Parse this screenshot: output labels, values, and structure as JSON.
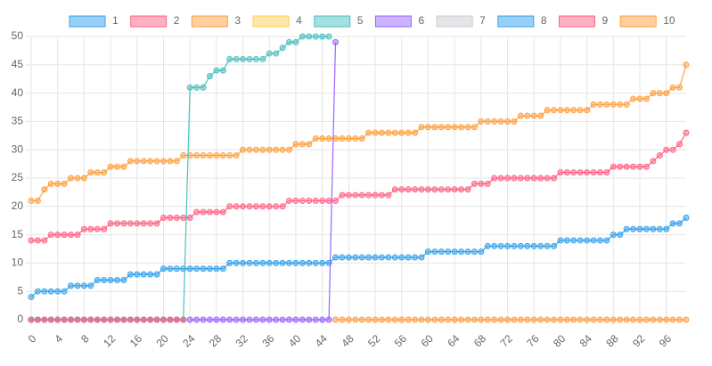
{
  "chart_data": {
    "type": "line",
    "x": [
      0,
      1,
      2,
      3,
      4,
      5,
      6,
      7,
      8,
      9,
      10,
      11,
      12,
      13,
      14,
      15,
      16,
      17,
      18,
      19,
      20,
      21,
      22,
      23,
      24,
      25,
      26,
      27,
      28,
      29,
      30,
      31,
      32,
      33,
      34,
      35,
      36,
      37,
      38,
      39,
      40,
      41,
      42,
      43,
      44,
      45,
      46,
      47,
      48,
      49,
      50,
      51,
      52,
      53,
      54,
      55,
      56,
      57,
      58,
      59,
      60,
      61,
      62,
      63,
      64,
      65,
      66,
      67,
      68,
      69,
      70,
      71,
      72,
      73,
      74,
      75,
      76,
      77,
      78,
      79,
      80,
      81,
      82,
      83,
      84,
      85,
      86,
      87,
      88,
      89,
      90,
      91,
      92,
      93,
      94,
      95,
      96,
      97,
      98,
      99
    ],
    "xlim": [
      0,
      99
    ],
    "xticks": [
      0,
      4,
      8,
      12,
      16,
      20,
      24,
      28,
      32,
      36,
      40,
      44,
      48,
      52,
      56,
      60,
      64,
      68,
      72,
      76,
      80,
      84,
      88,
      92,
      96
    ],
    "ylim": [
      0,
      50
    ],
    "yticks": [
      0,
      5,
      10,
      15,
      20,
      25,
      30,
      35,
      40,
      45,
      50
    ],
    "grid": true,
    "legend": "top",
    "series": [
      {
        "name": "1",
        "color": "#36a2eb",
        "values": [
          4,
          5,
          5,
          5,
          5,
          5,
          6,
          6,
          6,
          6,
          7,
          7,
          7,
          7,
          7,
          8,
          8,
          8,
          8,
          8,
          9,
          9,
          9,
          9,
          9,
          9,
          9,
          9,
          9,
          9,
          10,
          10,
          10,
          10,
          10,
          10,
          10,
          10,
          10,
          10,
          10,
          10,
          10,
          10,
          10,
          10,
          11,
          11,
          11,
          11,
          11,
          11,
          11,
          11,
          11,
          11,
          11,
          11,
          11,
          11,
          12,
          12,
          12,
          12,
          12,
          12,
          12,
          12,
          12,
          13,
          13,
          13,
          13,
          13,
          13,
          13,
          13,
          13,
          13,
          13,
          14,
          14,
          14,
          14,
          14,
          14,
          14,
          14,
          15,
          15,
          16,
          16,
          16,
          16,
          16,
          16,
          16,
          17,
          17,
          18
        ]
      },
      {
        "name": "2",
        "color": "#ff6384",
        "values": [
          14,
          14,
          14,
          15,
          15,
          15,
          15,
          15,
          16,
          16,
          16,
          16,
          17,
          17,
          17,
          17,
          17,
          17,
          17,
          17,
          18,
          18,
          18,
          18,
          18,
          19,
          19,
          19,
          19,
          19,
          20,
          20,
          20,
          20,
          20,
          20,
          20,
          20,
          20,
          21,
          21,
          21,
          21,
          21,
          21,
          21,
          21,
          22,
          22,
          22,
          22,
          22,
          22,
          22,
          22,
          23,
          23,
          23,
          23,
          23,
          23,
          23,
          23,
          23,
          23,
          23,
          23,
          24,
          24,
          24,
          25,
          25,
          25,
          25,
          25,
          25,
          25,
          25,
          25,
          25,
          26,
          26,
          26,
          26,
          26,
          26,
          26,
          26,
          27,
          27,
          27,
          27,
          27,
          27,
          28,
          29,
          30,
          30,
          31,
          33
        ]
      },
      {
        "name": "3",
        "color": "#ff9f40",
        "values": [
          21,
          21,
          23,
          24,
          24,
          24,
          25,
          25,
          25,
          26,
          26,
          26,
          27,
          27,
          27,
          28,
          28,
          28,
          28,
          28,
          28,
          28,
          28,
          29,
          29,
          29,
          29,
          29,
          29,
          29,
          29,
          29,
          30,
          30,
          30,
          30,
          30,
          30,
          30,
          30,
          31,
          31,
          31,
          32,
          32,
          32,
          32,
          32,
          32,
          32,
          32,
          33,
          33,
          33,
          33,
          33,
          33,
          33,
          33,
          34,
          34,
          34,
          34,
          34,
          34,
          34,
          34,
          34,
          35,
          35,
          35,
          35,
          35,
          35,
          36,
          36,
          36,
          36,
          37,
          37,
          37,
          37,
          37,
          37,
          37,
          38,
          38,
          38,
          38,
          38,
          38,
          39,
          39,
          39,
          40,
          40,
          40,
          41,
          41,
          45
        ]
      },
      {
        "name": "4",
        "color": "#ffcd56",
        "values": [
          0,
          0,
          0,
          0,
          0,
          0,
          0,
          0,
          0,
          0,
          0,
          0,
          0,
          0,
          0,
          0,
          0,
          0,
          0,
          0,
          0,
          0,
          0,
          0,
          null,
          null,
          null,
          null,
          null,
          null,
          null,
          null,
          null,
          null,
          null,
          null,
          null,
          null,
          null,
          null,
          null,
          null,
          null,
          null,
          null,
          null,
          null,
          null,
          null,
          null,
          null,
          null,
          null,
          null,
          null,
          null,
          null,
          null,
          null,
          null,
          null,
          null,
          null,
          null,
          null,
          null,
          null,
          null,
          null,
          null,
          null,
          null,
          null,
          null,
          null,
          null,
          null,
          null,
          null,
          null,
          null,
          null,
          null,
          null,
          null,
          null,
          null,
          null,
          null,
          null,
          null,
          null,
          null,
          null,
          null,
          null,
          null,
          null,
          null,
          null
        ]
      },
      {
        "name": "5",
        "color": "#4bc0c0",
        "values": [
          0,
          0,
          0,
          0,
          0,
          0,
          0,
          0,
          0,
          0,
          0,
          0,
          0,
          0,
          0,
          0,
          0,
          0,
          0,
          0,
          0,
          0,
          0,
          0,
          41,
          41,
          41,
          43,
          44,
          44,
          46,
          46,
          46,
          46,
          46,
          46,
          47,
          47,
          48,
          49,
          49,
          50,
          50,
          50,
          50,
          50,
          null,
          null,
          null,
          null,
          null,
          null,
          null,
          null,
          null,
          null,
          null,
          null,
          null,
          null,
          null,
          null,
          null,
          null,
          null,
          null,
          null,
          null,
          null,
          null,
          null,
          null,
          null,
          null,
          null,
          null,
          null,
          null,
          null,
          null,
          null,
          null,
          null,
          null,
          null,
          null,
          null,
          null,
          null,
          null,
          null,
          null,
          null,
          null,
          null,
          null,
          null,
          null,
          null,
          null
        ]
      },
      {
        "name": "6",
        "color": "#9966ff",
        "values": [
          null,
          null,
          null,
          null,
          null,
          null,
          null,
          null,
          null,
          null,
          null,
          null,
          null,
          null,
          null,
          null,
          null,
          null,
          null,
          null,
          null,
          null,
          null,
          null,
          0,
          0,
          0,
          0,
          0,
          0,
          0,
          0,
          0,
          0,
          0,
          0,
          0,
          0,
          0,
          0,
          0,
          0,
          0,
          0,
          0,
          0,
          49,
          null,
          null,
          null,
          null,
          null,
          null,
          null,
          null,
          null,
          null,
          null,
          null,
          null,
          null,
          null,
          null,
          null,
          null,
          null,
          null,
          null,
          null,
          null,
          null,
          null,
          null,
          null,
          null,
          null,
          null,
          null,
          null,
          null,
          null,
          null,
          null,
          null,
          null,
          null,
          null,
          null,
          null,
          null,
          null,
          null,
          null,
          null,
          null,
          null,
          null,
          null,
          null,
          null
        ]
      },
      {
        "name": "7",
        "color": "#c9cbcf",
        "values": [
          0,
          0,
          0,
          0,
          0,
          0,
          0,
          0,
          0,
          0,
          0,
          0,
          0,
          0,
          0,
          0,
          0,
          0,
          0,
          0,
          0,
          0,
          0,
          0,
          null,
          null,
          null,
          null,
          null,
          null,
          null,
          null,
          null,
          null,
          null,
          null,
          null,
          null,
          null,
          null,
          null,
          null,
          null,
          null,
          null,
          null,
          null,
          null,
          null,
          null,
          null,
          null,
          null,
          null,
          null,
          null,
          null,
          null,
          null,
          null,
          null,
          null,
          null,
          null,
          null,
          null,
          null,
          null,
          null,
          null,
          null,
          null,
          null,
          null,
          null,
          null,
          null,
          null,
          null,
          null,
          null,
          null,
          null,
          null,
          null,
          null,
          null,
          null,
          null,
          null,
          null,
          null,
          null,
          null,
          null,
          null,
          null,
          null,
          null,
          null
        ]
      },
      {
        "name": "8",
        "color": "#36a2eb",
        "values": [
          0,
          0,
          0,
          0,
          0,
          0,
          0,
          0,
          0,
          0,
          0,
          0,
          0,
          0,
          0,
          0,
          0,
          0,
          0,
          0,
          0,
          0,
          0,
          0,
          null,
          null,
          null,
          null,
          null,
          null,
          null,
          null,
          null,
          null,
          null,
          null,
          null,
          null,
          null,
          null,
          null,
          null,
          null,
          null,
          null,
          null,
          null,
          null,
          null,
          null,
          null,
          null,
          null,
          null,
          null,
          null,
          null,
          null,
          null,
          null,
          null,
          null,
          null,
          null,
          null,
          null,
          null,
          null,
          null,
          null,
          null,
          null,
          null,
          null,
          null,
          null,
          null,
          null,
          null,
          null,
          null,
          null,
          null,
          null,
          null,
          null,
          null,
          null,
          null,
          null,
          null,
          null,
          null,
          null,
          null,
          null,
          null,
          null,
          null,
          null
        ]
      },
      {
        "name": "9",
        "color": "#ff6384",
        "values": [
          0,
          0,
          0,
          0,
          0,
          0,
          0,
          0,
          0,
          0,
          0,
          0,
          0,
          0,
          0,
          0,
          0,
          0,
          0,
          0,
          0,
          0,
          0,
          0,
          null,
          null,
          null,
          null,
          null,
          null,
          null,
          null,
          null,
          null,
          null,
          null,
          null,
          null,
          null,
          null,
          null,
          null,
          null,
          null,
          null,
          null,
          null,
          null,
          null,
          null,
          null,
          null,
          null,
          null,
          null,
          null,
          null,
          null,
          null,
          null,
          null,
          null,
          null,
          null,
          null,
          null,
          null,
          null,
          null,
          null,
          null,
          null,
          null,
          null,
          null,
          null,
          null,
          null,
          null,
          null,
          null,
          null,
          null,
          null,
          null,
          null,
          null,
          null,
          null,
          null,
          null,
          null,
          null,
          null,
          null,
          null,
          null,
          null,
          null,
          null
        ]
      },
      {
        "name": "10",
        "color": "#ff9f40",
        "values": [
          null,
          null,
          null,
          null,
          null,
          null,
          null,
          null,
          null,
          null,
          null,
          null,
          null,
          null,
          null,
          null,
          null,
          null,
          null,
          null,
          null,
          null,
          null,
          null,
          null,
          null,
          null,
          null,
          null,
          null,
          null,
          null,
          null,
          null,
          null,
          null,
          null,
          null,
          null,
          null,
          null,
          null,
          null,
          null,
          null,
          null,
          0,
          0,
          0,
          0,
          0,
          0,
          0,
          0,
          0,
          0,
          0,
          0,
          0,
          0,
          0,
          0,
          0,
          0,
          0,
          0,
          0,
          0,
          0,
          0,
          0,
          0,
          0,
          0,
          0,
          0,
          0,
          0,
          0,
          0,
          0,
          0,
          0,
          0,
          0,
          0,
          0,
          0,
          0,
          0,
          0,
          0,
          0,
          0,
          0,
          0,
          0,
          0,
          0,
          0
        ]
      }
    ]
  }
}
